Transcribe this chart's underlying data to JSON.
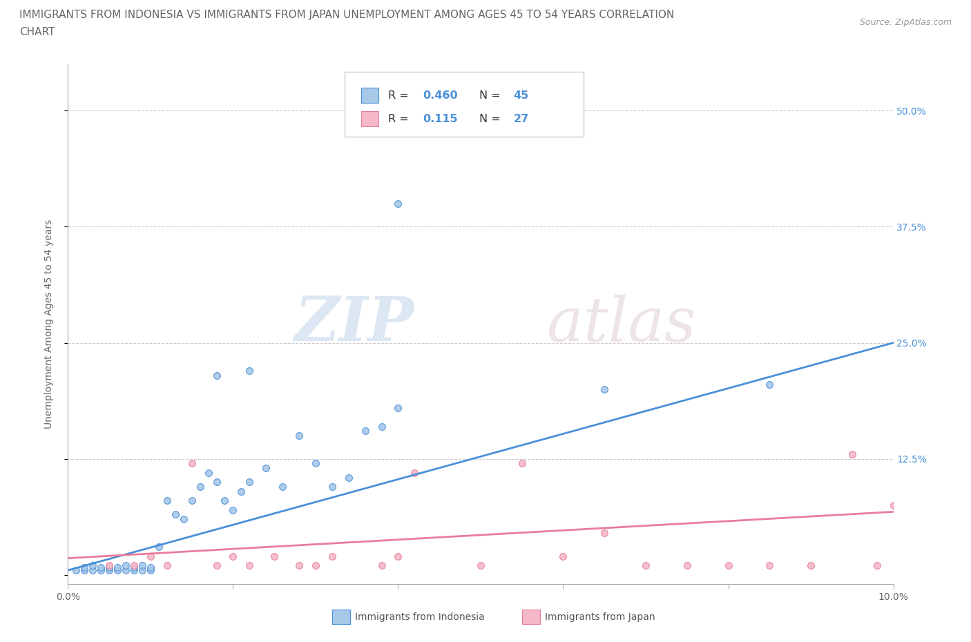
{
  "title_line1": "IMMIGRANTS FROM INDONESIA VS IMMIGRANTS FROM JAPAN UNEMPLOYMENT AMONG AGES 45 TO 54 YEARS CORRELATION",
  "title_line2": "CHART",
  "source_text": "Source: ZipAtlas.com",
  "ylabel": "Unemployment Among Ages 45 to 54 years",
  "xlim": [
    0.0,
    0.1
  ],
  "ylim": [
    -0.01,
    0.55
  ],
  "xticks": [
    0.0,
    0.02,
    0.04,
    0.06,
    0.08,
    0.1
  ],
  "xticklabels": [
    "0.0%",
    "",
    "",
    "",
    "",
    "10.0%"
  ],
  "ytick_positions": [
    0.0,
    0.125,
    0.25,
    0.375,
    0.5
  ],
  "ytick_labels": [
    "",
    "12.5%",
    "25.0%",
    "37.5%",
    "50.0%"
  ],
  "watermark_zip": "ZIP",
  "watermark_atlas": "atlas",
  "color_indonesia": "#a8c8e8",
  "color_japan": "#f4b8c8",
  "line_color_indonesia": "#4a90d9",
  "line_color_japan": "#e87c9a",
  "indonesia_x": [
    0.001,
    0.002,
    0.002,
    0.003,
    0.003,
    0.004,
    0.004,
    0.005,
    0.005,
    0.006,
    0.006,
    0.007,
    0.007,
    0.008,
    0.008,
    0.009,
    0.009,
    0.01,
    0.01,
    0.011,
    0.012,
    0.013,
    0.014,
    0.015,
    0.016,
    0.017,
    0.018,
    0.019,
    0.02,
    0.021,
    0.022,
    0.024,
    0.026,
    0.028,
    0.03,
    0.032,
    0.034,
    0.036,
    0.038,
    0.04,
    0.018,
    0.022,
    0.04,
    0.065,
    0.085
  ],
  "indonesia_y": [
    0.005,
    0.005,
    0.008,
    0.005,
    0.01,
    0.005,
    0.008,
    0.005,
    0.008,
    0.005,
    0.008,
    0.005,
    0.01,
    0.005,
    0.008,
    0.005,
    0.01,
    0.005,
    0.008,
    0.03,
    0.08,
    0.065,
    0.06,
    0.08,
    0.095,
    0.11,
    0.1,
    0.08,
    0.07,
    0.09,
    0.1,
    0.115,
    0.095,
    0.15,
    0.12,
    0.095,
    0.105,
    0.155,
    0.16,
    0.18,
    0.215,
    0.22,
    0.4,
    0.2,
    0.205
  ],
  "japan_x": [
    0.005,
    0.008,
    0.01,
    0.012,
    0.015,
    0.018,
    0.02,
    0.022,
    0.025,
    0.028,
    0.03,
    0.032,
    0.038,
    0.04,
    0.042,
    0.05,
    0.055,
    0.06,
    0.065,
    0.07,
    0.075,
    0.08,
    0.085,
    0.09,
    0.095,
    0.098,
    0.1
  ],
  "japan_y": [
    0.01,
    0.01,
    0.02,
    0.01,
    0.12,
    0.01,
    0.02,
    0.01,
    0.02,
    0.01,
    0.01,
    0.02,
    0.01,
    0.02,
    0.11,
    0.01,
    0.12,
    0.02,
    0.045,
    0.01,
    0.01,
    0.01,
    0.01,
    0.01,
    0.13,
    0.01,
    0.075
  ],
  "indonesia_slope": 2.45,
  "indonesia_intercept": 0.005,
  "japan_slope": 0.5,
  "japan_intercept": 0.018,
  "background_color": "#ffffff",
  "grid_color": "#cccccc",
  "title_fontsize": 11,
  "axis_label_fontsize": 10,
  "tick_fontsize": 10,
  "marker_size": 50
}
